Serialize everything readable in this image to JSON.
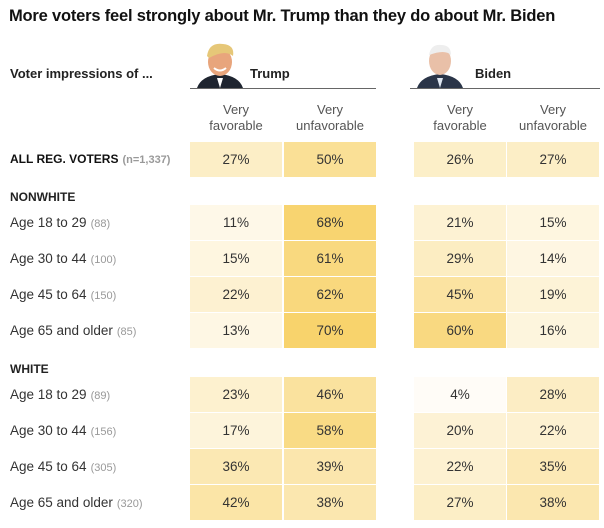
{
  "chart_data": {
    "type": "table",
    "title": "More voters feel strongly about Mr. Trump than they do about Mr. Biden",
    "row_header": "Voter impressions of ...",
    "candidates": [
      "Trump",
      "Biden"
    ],
    "columns": [
      {
        "line1": "Very",
        "line2": "favorable"
      },
      {
        "line1": "Very",
        "line2": "unfavorable"
      }
    ],
    "groups": [
      {
        "name": "",
        "rows": [
          {
            "label": "ALL REG. VOTERS",
            "n": "(n=1,337)",
            "bold": true,
            "values": [
              27,
              50,
              26,
              27
            ]
          }
        ]
      },
      {
        "name": "NONWHITE",
        "rows": [
          {
            "label": "Age 18 to 29",
            "n": "(88)",
            "values": [
              11,
              68,
              21,
              15
            ]
          },
          {
            "label": "Age 30 to 44",
            "n": "(100)",
            "values": [
              15,
              61,
              29,
              14
            ]
          },
          {
            "label": "Age 45 to 64",
            "n": "(150)",
            "values": [
              22,
              62,
              45,
              19
            ]
          },
          {
            "label": "Age 65 and older",
            "n": "(85)",
            "values": [
              13,
              70,
              60,
              16
            ]
          }
        ]
      },
      {
        "name": "WHITE",
        "rows": [
          {
            "label": "Age 18 to 29",
            "n": "(89)",
            "values": [
              23,
              46,
              4,
              28
            ]
          },
          {
            "label": "Age 30 to 44",
            "n": "(156)",
            "values": [
              17,
              58,
              20,
              22
            ]
          },
          {
            "label": "Age 45 to 64",
            "n": "(305)",
            "values": [
              36,
              39,
              22,
              35
            ]
          },
          {
            "label": "Age 65 and older",
            "n": "(320)",
            "values": [
              42,
              38,
              27,
              38
            ]
          }
        ]
      }
    ],
    "color_scale": {
      "min": 0,
      "max": 70,
      "low": "#ffffff",
      "high": "#f8d36c"
    }
  }
}
